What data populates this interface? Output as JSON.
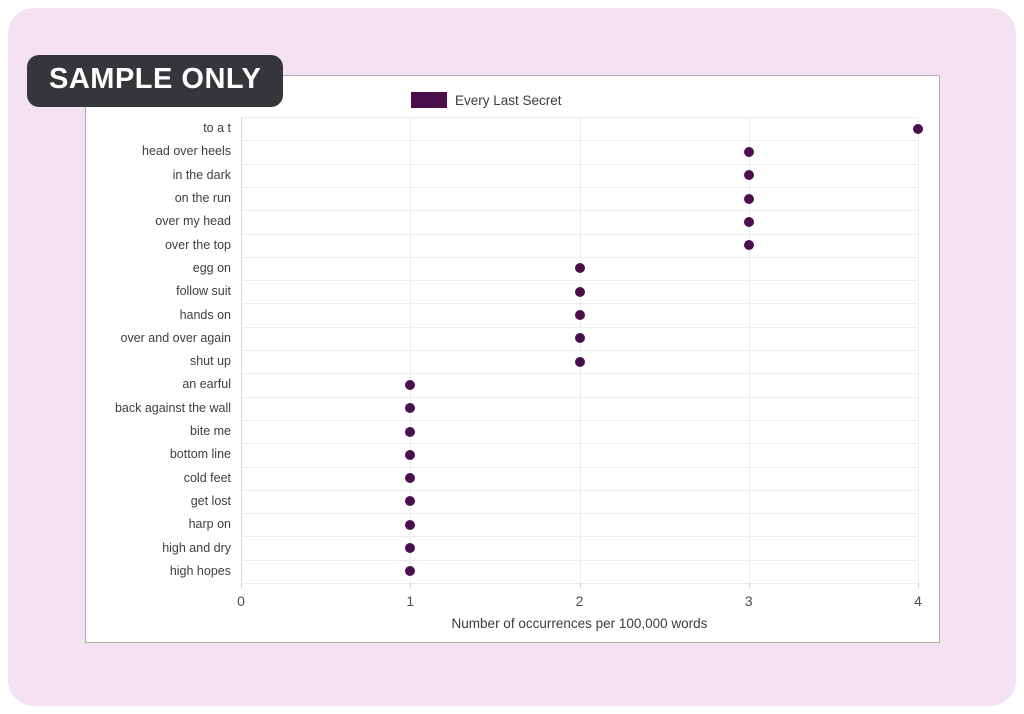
{
  "page": {
    "background": "#ffffff",
    "panel_color": "#f4e2f2"
  },
  "badge": {
    "label": "SAMPLE ONLY",
    "background": "#35363a",
    "text_color": "#ffffff"
  },
  "chart_data": {
    "type": "scatter",
    "orientation": "horizontal_dot_plot",
    "title": "",
    "xlabel": "Number of occurrences per 100,000 words",
    "ylabel": "",
    "xlim": [
      0,
      4
    ],
    "x_ticks": [
      "0",
      "1",
      "2",
      "3",
      "4"
    ],
    "grid": true,
    "legend_position": "top-center",
    "categories": [
      "to a t",
      "head over heels",
      "in the dark",
      "on the run",
      "over my head",
      "over the top",
      "egg on",
      "follow suit",
      "hands on",
      "over and over again",
      "shut up",
      "an earful",
      "back against the wall",
      "bite me",
      "bottom line",
      "cold feet",
      "get lost",
      "harp on",
      "high and dry",
      "high hopes"
    ],
    "series": [
      {
        "name": "Every Last Secret",
        "color": "#4b0f4e",
        "values": [
          4,
          3,
          3,
          3,
          3,
          3,
          2,
          2,
          2,
          2,
          2,
          1,
          1,
          1,
          1,
          1,
          1,
          1,
          1,
          1
        ]
      }
    ]
  },
  "colors": {
    "grid_line": "#ececec",
    "zero_line": "#d4d4d4",
    "axis_text": "#4d4d4d",
    "label_text": "#3f3f3f",
    "card_border": "#adadad"
  }
}
